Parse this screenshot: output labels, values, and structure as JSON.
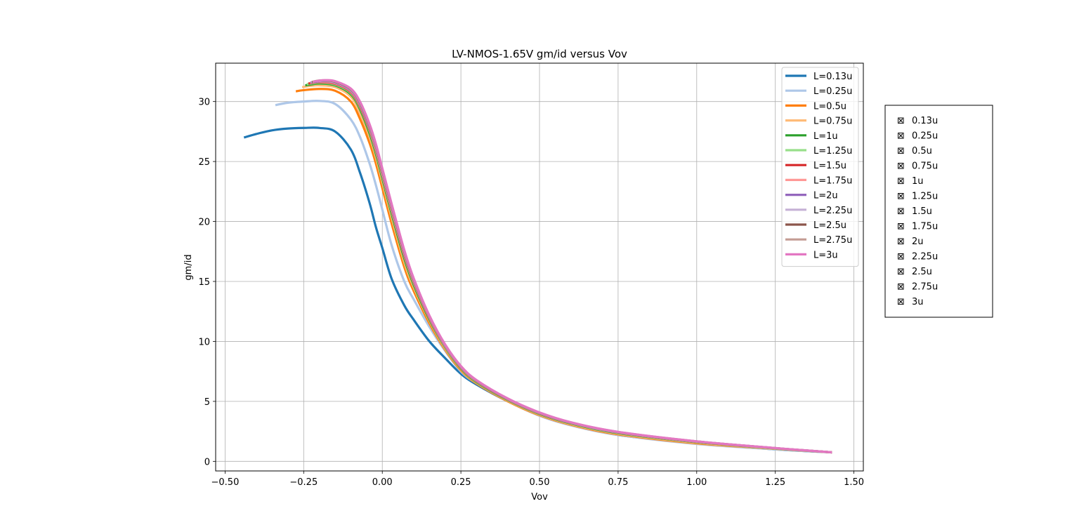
{
  "chart_data": {
    "type": "line",
    "title": "LV-NMOS-1.65V gm/id versus Vov",
    "xlabel": "Vov",
    "ylabel": "gm/id",
    "xlim": [
      -0.53,
      1.53
    ],
    "ylim": [
      -0.8,
      33.2
    ],
    "xticks": [
      -0.5,
      -0.25,
      0.0,
      0.25,
      0.5,
      0.75,
      1.0,
      1.25,
      1.5
    ],
    "xtick_labels": [
      "−0.50",
      "−0.25",
      "0.00",
      "0.25",
      "0.50",
      "0.75",
      "1.00",
      "1.25",
      "1.50"
    ],
    "yticks": [
      0,
      5,
      10,
      15,
      20,
      25,
      30
    ],
    "ytick_labels": [
      "0",
      "5",
      "10",
      "15",
      "20",
      "25",
      "30"
    ],
    "grid": true,
    "legend": "top-right",
    "series": [
      {
        "name": "L=0.13u",
        "color": "#1f77b4",
        "x": [
          -0.44,
          -0.4,
          -0.35,
          -0.3,
          -0.25,
          -0.2,
          -0.15,
          -0.1,
          -0.07,
          -0.04,
          -0.02,
          0.0,
          0.03,
          0.07,
          0.1,
          0.15,
          0.2,
          0.25,
          0.3,
          0.4,
          0.5,
          0.6,
          0.75,
          1.0,
          1.25,
          1.43
        ],
        "y": [
          27.0,
          27.3,
          27.6,
          27.75,
          27.8,
          27.8,
          27.5,
          26.0,
          24.0,
          21.5,
          19.5,
          17.8,
          15.2,
          13.0,
          11.8,
          10.0,
          8.6,
          7.3,
          6.4,
          5.0,
          3.9,
          3.1,
          2.2,
          1.5,
          1.0,
          0.75
        ]
      },
      {
        "name": "L=0.25u",
        "color": "#aec7e8",
        "x": [
          -0.34,
          -0.3,
          -0.25,
          -0.2,
          -0.15,
          -0.1,
          -0.07,
          -0.04,
          -0.02,
          0.0,
          0.03,
          0.07,
          0.1,
          0.15,
          0.2,
          0.25,
          0.3,
          0.4,
          0.5,
          0.6,
          0.75,
          1.0,
          1.25,
          1.43
        ],
        "y": [
          29.7,
          29.9,
          30.0,
          30.05,
          29.8,
          28.5,
          27.0,
          24.8,
          23.0,
          21.0,
          18.0,
          15.0,
          13.5,
          11.2,
          9.2,
          7.5,
          6.5,
          5.0,
          3.8,
          3.0,
          2.2,
          1.45,
          1.0,
          0.75
        ]
      },
      {
        "name": "L=0.5u",
        "color": "#ff7f0e",
        "x": [
          -0.275,
          -0.25,
          -0.2,
          -0.15,
          -0.1,
          -0.07,
          -0.04,
          -0.02,
          0.0,
          0.03,
          0.07,
          0.1,
          0.15,
          0.2,
          0.25,
          0.3,
          0.4,
          0.5,
          0.6,
          0.75,
          1.0,
          1.25,
          1.43
        ],
        "y": [
          30.85,
          30.95,
          31.05,
          30.9,
          30.0,
          28.5,
          26.5,
          24.8,
          22.8,
          19.8,
          16.2,
          14.2,
          11.5,
          9.3,
          7.6,
          6.5,
          5.0,
          3.85,
          3.05,
          2.25,
          1.5,
          1.05,
          0.75
        ]
      },
      {
        "name": "L=0.75u",
        "color": "#ffbb78",
        "x": [
          -0.255,
          -0.23,
          -0.2,
          -0.15,
          -0.1,
          -0.07,
          -0.04,
          -0.02,
          0.0,
          0.03,
          0.07,
          0.1,
          0.15,
          0.2,
          0.25,
          0.3,
          0.4,
          0.5,
          0.6,
          0.75,
          1.0,
          1.25,
          1.43
        ],
        "y": [
          31.2,
          31.3,
          31.35,
          31.2,
          30.4,
          29.0,
          27.0,
          25.3,
          23.3,
          20.3,
          16.6,
          14.5,
          11.7,
          9.4,
          7.7,
          6.55,
          5.05,
          3.9,
          3.1,
          2.3,
          1.55,
          1.05,
          0.75
        ]
      },
      {
        "name": "L=1u",
        "color": "#2ca02c",
        "x": [
          -0.245,
          -0.22,
          -0.2,
          -0.15,
          -0.1,
          -0.07,
          -0.04,
          -0.02,
          0.0,
          0.03,
          0.07,
          0.1,
          0.15,
          0.2,
          0.25,
          0.3,
          0.4,
          0.5,
          0.6,
          0.75,
          1.0,
          1.25,
          1.43
        ],
        "y": [
          31.35,
          31.45,
          31.5,
          31.35,
          30.6,
          29.3,
          27.3,
          25.6,
          23.6,
          20.6,
          16.9,
          14.7,
          11.8,
          9.5,
          7.75,
          6.6,
          5.1,
          3.95,
          3.15,
          2.35,
          1.6,
          1.07,
          0.75
        ]
      },
      {
        "name": "L=1.25u",
        "color": "#98df8a",
        "x": [
          -0.24,
          -0.22,
          -0.2,
          -0.15,
          -0.1,
          -0.07,
          -0.04,
          -0.02,
          0.0,
          0.03,
          0.07,
          0.1,
          0.15,
          0.2,
          0.25,
          0.3,
          0.4,
          0.5,
          0.6,
          0.75,
          1.0,
          1.25,
          1.43
        ],
        "y": [
          31.45,
          31.52,
          31.57,
          31.42,
          30.7,
          29.45,
          27.5,
          25.8,
          23.8,
          20.8,
          17.1,
          14.85,
          11.9,
          9.55,
          7.8,
          6.65,
          5.13,
          3.98,
          3.18,
          2.38,
          1.62,
          1.08,
          0.75
        ]
      },
      {
        "name": "L=1.5u",
        "color": "#d62728",
        "x": [
          -0.235,
          -0.22,
          -0.2,
          -0.15,
          -0.1,
          -0.07,
          -0.04,
          -0.02,
          0.0,
          0.03,
          0.07,
          0.1,
          0.15,
          0.2,
          0.25,
          0.3,
          0.4,
          0.5,
          0.6,
          0.75,
          1.0,
          1.25,
          1.43
        ],
        "y": [
          31.5,
          31.57,
          31.62,
          31.48,
          30.78,
          29.55,
          27.62,
          25.95,
          23.95,
          20.95,
          17.2,
          14.95,
          11.95,
          9.6,
          7.83,
          6.68,
          5.15,
          4.0,
          3.2,
          2.4,
          1.63,
          1.09,
          0.75
        ]
      },
      {
        "name": "L=1.75u",
        "color": "#ff9896",
        "x": [
          -0.23,
          -0.22,
          -0.2,
          -0.15,
          -0.1,
          -0.07,
          -0.04,
          -0.02,
          0.0,
          0.03,
          0.07,
          0.1,
          0.15,
          0.2,
          0.25,
          0.3,
          0.4,
          0.5,
          0.6,
          0.75,
          1.0,
          1.25,
          1.43
        ],
        "y": [
          31.55,
          31.6,
          31.66,
          31.53,
          30.84,
          29.64,
          27.72,
          26.05,
          24.05,
          21.05,
          17.3,
          15.02,
          12.0,
          9.63,
          7.86,
          6.7,
          5.17,
          4.02,
          3.21,
          2.41,
          1.64,
          1.09,
          0.75
        ]
      },
      {
        "name": "L=2u",
        "color": "#9467bd",
        "x": [
          -0.228,
          -0.21,
          -0.19,
          -0.15,
          -0.1,
          -0.07,
          -0.04,
          -0.02,
          0.0,
          0.03,
          0.07,
          0.1,
          0.15,
          0.2,
          0.25,
          0.3,
          0.4,
          0.5,
          0.6,
          0.75,
          1.0,
          1.25,
          1.43
        ],
        "y": [
          31.58,
          31.65,
          31.7,
          31.58,
          30.9,
          29.72,
          27.8,
          26.15,
          24.15,
          21.15,
          17.38,
          15.08,
          12.05,
          9.66,
          7.88,
          6.72,
          5.18,
          4.03,
          3.22,
          2.42,
          1.65,
          1.1,
          0.75
        ]
      },
      {
        "name": "L=2.25u",
        "color": "#c5b0d5",
        "x": [
          -0.226,
          -0.21,
          -0.19,
          -0.15,
          -0.1,
          -0.07,
          -0.04,
          -0.02,
          0.0,
          0.03,
          0.07,
          0.1,
          0.15,
          0.2,
          0.25,
          0.3,
          0.4,
          0.5,
          0.6,
          0.75,
          1.0,
          1.25,
          1.43
        ],
        "y": [
          31.6,
          31.68,
          31.73,
          31.62,
          30.95,
          29.78,
          27.88,
          26.22,
          24.22,
          21.22,
          17.44,
          15.13,
          12.08,
          9.68,
          7.9,
          6.73,
          5.19,
          4.04,
          3.23,
          2.43,
          1.65,
          1.1,
          0.75
        ]
      },
      {
        "name": "L=2.5u",
        "color": "#8c564b",
        "x": [
          -0.224,
          -0.21,
          -0.19,
          -0.15,
          -0.1,
          -0.07,
          -0.04,
          -0.02,
          0.0,
          0.03,
          0.07,
          0.1,
          0.15,
          0.2,
          0.25,
          0.3,
          0.4,
          0.5,
          0.6,
          0.75,
          1.0,
          1.25,
          1.43
        ],
        "y": [
          31.62,
          31.7,
          31.75,
          31.65,
          31.0,
          29.84,
          27.95,
          26.3,
          24.3,
          21.3,
          17.5,
          15.18,
          12.1,
          9.7,
          7.92,
          6.74,
          5.2,
          4.05,
          3.24,
          2.44,
          1.66,
          1.1,
          0.75
        ]
      },
      {
        "name": "L=2.75u",
        "color": "#c49c94",
        "x": [
          -0.222,
          -0.21,
          -0.19,
          -0.15,
          -0.1,
          -0.07,
          -0.04,
          -0.02,
          0.0,
          0.03,
          0.07,
          0.1,
          0.15,
          0.2,
          0.25,
          0.3,
          0.4,
          0.5,
          0.6,
          0.75,
          1.0,
          1.25,
          1.43
        ],
        "y": [
          31.64,
          31.72,
          31.77,
          31.68,
          31.04,
          29.9,
          28.02,
          26.37,
          24.37,
          21.37,
          17.56,
          15.22,
          12.12,
          9.72,
          7.93,
          6.75,
          5.21,
          4.06,
          3.25,
          2.45,
          1.66,
          1.1,
          0.75
        ]
      },
      {
        "name": "L=3u",
        "color": "#e377c2",
        "x": [
          -0.22,
          -0.2,
          -0.18,
          -0.15,
          -0.1,
          -0.07,
          -0.04,
          -0.02,
          0.0,
          0.03,
          0.07,
          0.1,
          0.15,
          0.2,
          0.25,
          0.3,
          0.4,
          0.5,
          0.6,
          0.75,
          1.0,
          1.25,
          1.43
        ],
        "y": [
          31.65,
          31.74,
          31.78,
          31.7,
          31.08,
          29.95,
          28.08,
          26.44,
          24.44,
          21.44,
          17.62,
          15.26,
          12.15,
          9.74,
          7.95,
          6.77,
          5.23,
          4.08,
          3.26,
          2.46,
          1.67,
          1.11,
          0.75
        ]
      }
    ]
  },
  "checkbox_panel": {
    "items": [
      "0.13u",
      "0.25u",
      "0.5u",
      "0.75u",
      "1u",
      "1.25u",
      "1.5u",
      "1.75u",
      "2u",
      "2.25u",
      "2.5u",
      "2.75u",
      "3u"
    ],
    "checked_glyph": "⊠"
  }
}
